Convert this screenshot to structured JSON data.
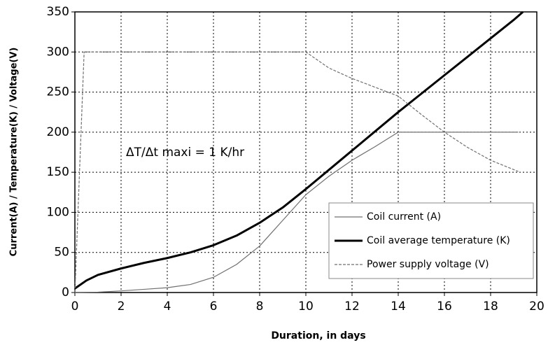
{
  "chart_data": {
    "type": "line",
    "x_label": "Duration, in days",
    "y_label": "Current(A) / Temperature(K) / Voltage(V)",
    "annotation": "ΔT/Δt maxi = 1 K/hr",
    "xlim": [
      0,
      20
    ],
    "xticks": [
      0,
      2,
      4,
      6,
      8,
      10,
      12,
      14,
      16,
      18,
      20
    ],
    "ylim": [
      0,
      350
    ],
    "yticks": [
      0,
      50,
      100,
      150,
      200,
      250,
      300,
      350
    ],
    "grid": true,
    "legend": "lower right",
    "series": [
      {
        "name": "Coil current (A)",
        "color": "#707070",
        "line_width": 1.2,
        "dash": false,
        "x": [
          0,
          1,
          2,
          3,
          4,
          5,
          6,
          7,
          8,
          9,
          10,
          11,
          12,
          13,
          14,
          19.2
        ],
        "values": [
          0,
          0.5,
          2,
          4,
          6,
          10,
          19,
          35,
          58,
          90,
          122,
          145,
          165,
          182,
          200,
          200
        ]
      },
      {
        "name": "Coil average temperature (K)",
        "color": "#000000",
        "line_width": 3,
        "dash": false,
        "x": [
          0,
          0.5,
          1,
          2,
          3,
          4,
          5,
          6,
          7,
          8,
          9,
          10,
          11,
          12,
          13,
          14,
          15,
          16,
          17,
          18,
          19,
          19.4
        ],
        "values": [
          5,
          15,
          22,
          30,
          37,
          43,
          50,
          59,
          71,
          87,
          106,
          129,
          153,
          177,
          201,
          225,
          248,
          271,
          294,
          317,
          340,
          350
        ]
      },
      {
        "name": "Power supply voltage  (V)",
        "color": "#707070",
        "line_width": 1.2,
        "dash": true,
        "x": [
          0,
          0.4,
          10,
          11,
          12,
          13,
          14,
          15,
          16,
          17,
          18,
          19.2
        ],
        "values": [
          0,
          300,
          300,
          280,
          267,
          256,
          245,
          222,
          200,
          181,
          165,
          151
        ]
      }
    ]
  }
}
